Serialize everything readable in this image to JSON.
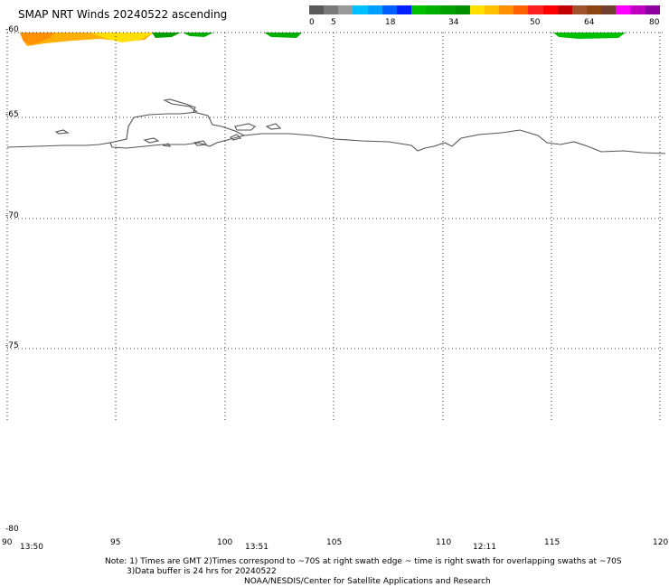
{
  "title": "SMAP NRT Winds 20240522 ascending",
  "colorbar": {
    "ticks": [
      "0",
      "5",
      "18",
      "34",
      "50",
      "64",
      "80"
    ],
    "colors": [
      "#5a5a5a",
      "#7a7a7a",
      "#9a9a9a",
      "#00c0ff",
      "#00a0ff",
      "#0060ff",
      "#0020ff",
      "#00c000",
      "#00b000",
      "#00a000",
      "#009000",
      "#ffe000",
      "#ffc000",
      "#ff9000",
      "#ff6000",
      "#ff2020",
      "#ff0000",
      "#c00000",
      "#a0522d",
      "#8b4513",
      "#704030",
      "#ff00ff",
      "#c000c0",
      "#9000a0"
    ]
  },
  "map": {
    "lat_labels": [
      "-60",
      "-65",
      "-70",
      "-75",
      "-80"
    ],
    "lon_labels": [
      "90",
      "95",
      "100",
      "105",
      "110",
      "115",
      "120"
    ],
    "time_labels": [
      "13:50",
      "13:51",
      "12:11"
    ],
    "lon_range": [
      90,
      120
    ],
    "lat_range": [
      -80,
      -60
    ],
    "grid": "dotted"
  },
  "notes": {
    "line1": "Note: 1) Times are GMT 2)Times correspond to ~70S at right swath edge ~ time is right swath for overlapping swaths at ~70S",
    "line2": "3)Data buffer is 24 hrs for 20240522",
    "line3": "NOAA/NESDIS/Center for Satellite Applications and Research"
  }
}
